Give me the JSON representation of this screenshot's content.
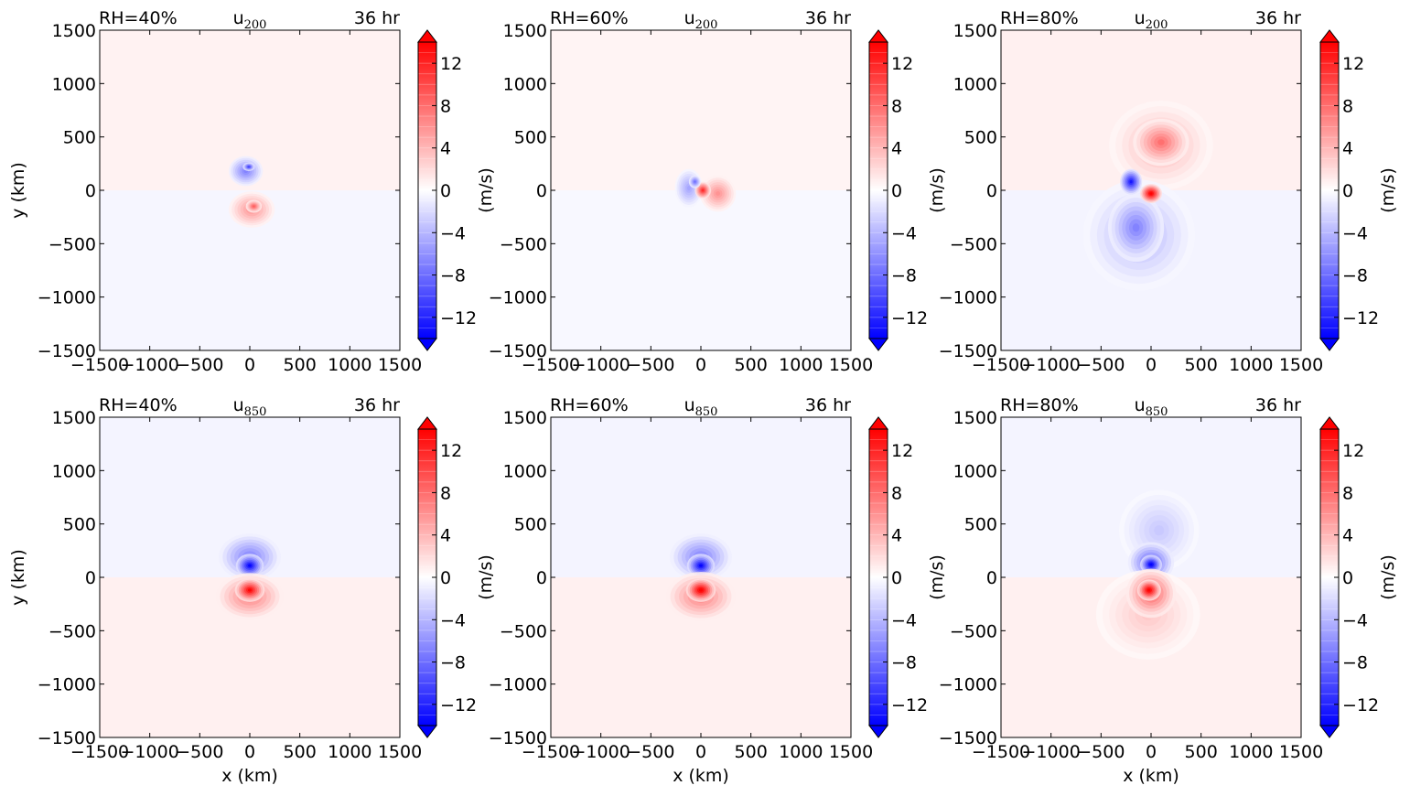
{
  "figure": {
    "colorbar_label": "(m/s)",
    "colorbar_ticks": [
      "12",
      "8",
      "4",
      "0",
      "−4",
      "−8",
      "−12"
    ],
    "colors": {
      "negative_max": "#0000ff",
      "positive_max": "#ff0000",
      "neutral": "#ffffff"
    }
  },
  "chart_data": [
    {
      "type": "heatmap",
      "rh_label": "RH=40%",
      "var": "u",
      "var_sub": "200",
      "time_label": "36 hr",
      "xlabel": "",
      "ylabel": "y (km)",
      "xlim": [
        -1500,
        1500
      ],
      "ylim": [
        -1500,
        1500
      ],
      "xticks": [
        "−1500",
        "−1000",
        "−500",
        "0",
        "500",
        "1000",
        "1500"
      ],
      "yticks": [
        "1500",
        "1000",
        "500",
        "0",
        "−500",
        "−1000",
        "−1500"
      ],
      "clim": [
        -14,
        14
      ],
      "colorbar_label": "(m/s)"
    },
    {
      "type": "heatmap",
      "rh_label": "RH=60%",
      "var": "u",
      "var_sub": "200",
      "time_label": "36 hr",
      "xlabel": "",
      "ylabel": "",
      "xlim": [
        -1500,
        1500
      ],
      "ylim": [
        -1500,
        1500
      ],
      "xticks": [
        "−1500",
        "−1000",
        "−500",
        "0",
        "500",
        "1000",
        "1500"
      ],
      "yticks": [
        "1500",
        "1000",
        "500",
        "0",
        "−500",
        "−1000",
        "−1500"
      ],
      "clim": [
        -14,
        14
      ],
      "colorbar_label": "(m/s)"
    },
    {
      "type": "heatmap",
      "rh_label": "RH=80%",
      "var": "u",
      "var_sub": "200",
      "time_label": "36 hr",
      "xlabel": "",
      "ylabel": "",
      "xlim": [
        -1500,
        1500
      ],
      "ylim": [
        -1500,
        1500
      ],
      "xticks": [
        "−1500",
        "−1000",
        "−500",
        "0",
        "500",
        "1000",
        "1500"
      ],
      "yticks": [
        "1500",
        "1000",
        "500",
        "0",
        "−500",
        "−1000",
        "−1500"
      ],
      "clim": [
        -14,
        14
      ],
      "colorbar_label": "(m/s)"
    },
    {
      "type": "heatmap",
      "rh_label": "RH=40%",
      "var": "u",
      "var_sub": "850",
      "time_label": "36 hr",
      "xlabel": "x (km)",
      "ylabel": "y (km)",
      "xlim": [
        -1500,
        1500
      ],
      "ylim": [
        -1500,
        1500
      ],
      "xticks": [
        "−1500",
        "−1000",
        "−500",
        "0",
        "500",
        "1000",
        "1500"
      ],
      "yticks": [
        "1500",
        "1000",
        "500",
        "0",
        "−500",
        "−1000",
        "−1500"
      ],
      "clim": [
        -14,
        14
      ],
      "colorbar_label": "(m/s)"
    },
    {
      "type": "heatmap",
      "rh_label": "RH=60%",
      "var": "u",
      "var_sub": "850",
      "time_label": "36 hr",
      "xlabel": "x (km)",
      "ylabel": "",
      "xlim": [
        -1500,
        1500
      ],
      "ylim": [
        -1500,
        1500
      ],
      "xticks": [
        "−1500",
        "−1000",
        "−500",
        "0",
        "500",
        "1000",
        "1500"
      ],
      "yticks": [
        "1500",
        "1000",
        "500",
        "0",
        "−500",
        "−1000",
        "−1500"
      ],
      "clim": [
        -14,
        14
      ],
      "colorbar_label": "(m/s)"
    },
    {
      "type": "heatmap",
      "rh_label": "RH=80%",
      "var": "u",
      "var_sub": "850",
      "time_label": "36 hr",
      "xlabel": "x (km)",
      "ylabel": "",
      "xlim": [
        -1500,
        1500
      ],
      "ylim": [
        -1500,
        1500
      ],
      "xticks": [
        "−1500",
        "−1000",
        "−500",
        "0",
        "500",
        "1000",
        "1500"
      ],
      "yticks": [
        "1500",
        "1000",
        "500",
        "0",
        "−500",
        "−1000",
        "−1500"
      ],
      "clim": [
        -14,
        14
      ],
      "colorbar_label": "(m/s)"
    }
  ]
}
